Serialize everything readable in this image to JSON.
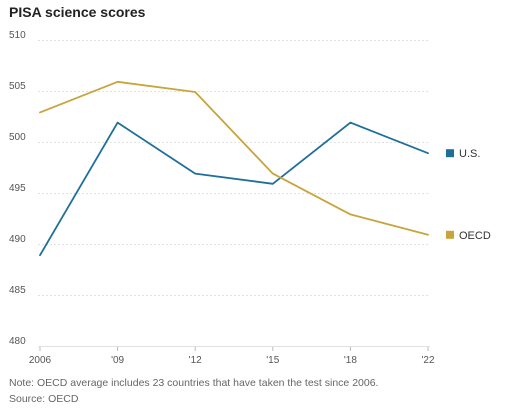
{
  "chart_data": {
    "type": "line",
    "title": "PISA science scores",
    "categories": [
      "2006",
      "'09",
      "'12",
      "'15",
      "'18",
      "'22"
    ],
    "series": [
      {
        "name": "U.S.",
        "values": [
          489,
          502,
          497,
          496,
          502,
          499
        ],
        "color": "#1f6f9b"
      },
      {
        "name": "OECD",
        "values": [
          503,
          506,
          505,
          497,
          493,
          491
        ],
        "color": "#c8a43c"
      }
    ],
    "ylim": [
      480,
      510
    ],
    "yticks": [
      480,
      485,
      490,
      495,
      500,
      505,
      510
    ],
    "grid": true,
    "legend_placement": "right, at end of lines"
  },
  "note": "Note: OECD average includes 23 countries that have taken the test since 2006.",
  "source": "Source: OECD"
}
